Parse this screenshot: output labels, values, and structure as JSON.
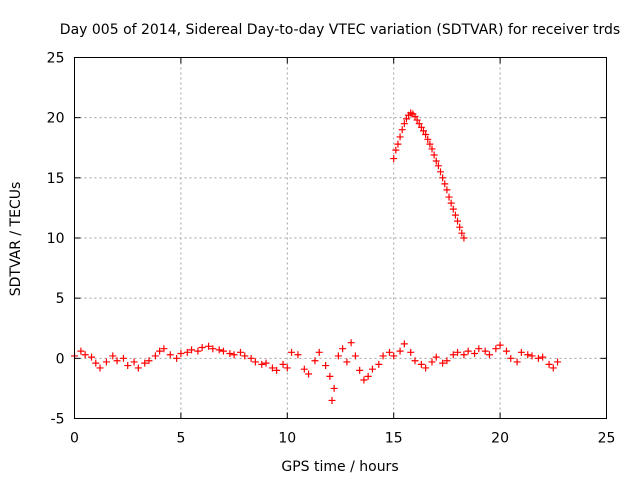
{
  "chart_data": {
    "type": "scatter",
    "title": "Day 005 of 2014, Sidereal Day-to-day VTEC variation (SDTVAR) for receiver trds",
    "xlabel": "GPS time / hours",
    "ylabel": "SDTVAR / TECUs",
    "xlim": [
      0,
      25
    ],
    "ylim": [
      -5,
      25
    ],
    "xticks": [
      0,
      5,
      10,
      15,
      20,
      25
    ],
    "yticks": [
      -5,
      0,
      5,
      10,
      15,
      20,
      25
    ],
    "grid": true,
    "marker": "+",
    "color": "#ff0000",
    "series": [
      {
        "name": "trds-low",
        "x": [
          0.0,
          0.3,
          0.5,
          0.8,
          1.0,
          1.2,
          1.5,
          1.8,
          2.0,
          2.3,
          2.5,
          2.8,
          3.0,
          3.3,
          3.5,
          3.8,
          4.0,
          4.2,
          4.5,
          4.8,
          5.0,
          5.3,
          5.5,
          5.8,
          6.0,
          6.3,
          6.5,
          6.8,
          7.0,
          7.3,
          7.5,
          7.8,
          8.0,
          8.3,
          8.5,
          8.8,
          9.0,
          9.3,
          9.5,
          9.8,
          10.0,
          10.2,
          10.5,
          10.8,
          11.0,
          11.3,
          11.5,
          11.8,
          12.0,
          12.1,
          12.2,
          12.4,
          12.6,
          12.8,
          13.0,
          13.2,
          13.4,
          13.6,
          13.8,
          14.0,
          14.3,
          14.5,
          14.8,
          15.0,
          15.3,
          15.5,
          15.8,
          16.0,
          16.3,
          16.5,
          16.8,
          17.0,
          17.3,
          17.5,
          17.8,
          18.0,
          18.3,
          18.5,
          18.8,
          19.0,
          19.3,
          19.5,
          19.8,
          20.0,
          20.3,
          20.5,
          20.8,
          21.0,
          21.3,
          21.5,
          21.8,
          22.0,
          22.3,
          22.5,
          22.7
        ],
        "y": [
          0.2,
          0.6,
          0.3,
          0.1,
          -0.4,
          -0.8,
          -0.3,
          0.2,
          -0.2,
          0.0,
          -0.6,
          -0.3,
          -0.8,
          -0.4,
          -0.2,
          0.2,
          0.6,
          0.8,
          0.3,
          0.0,
          0.4,
          0.5,
          0.7,
          0.6,
          0.9,
          1.0,
          0.8,
          0.7,
          0.6,
          0.4,
          0.3,
          0.5,
          0.2,
          0.0,
          -0.3,
          -0.5,
          -0.4,
          -0.8,
          -1.0,
          -0.5,
          -0.8,
          0.5,
          0.3,
          -0.9,
          -1.3,
          -0.2,
          0.5,
          -0.6,
          -1.5,
          -3.5,
          -2.5,
          0.2,
          0.8,
          -0.3,
          1.3,
          0.2,
          -1.0,
          -1.8,
          -1.5,
          -0.9,
          -0.5,
          0.2,
          0.5,
          0.2,
          0.6,
          1.2,
          0.5,
          -0.2,
          -0.5,
          -0.8,
          -0.3,
          0.1,
          -0.4,
          -0.2,
          0.3,
          0.5,
          0.3,
          0.6,
          0.4,
          0.8,
          0.6,
          0.3,
          0.8,
          1.1,
          0.6,
          0.0,
          -0.3,
          0.5,
          0.3,
          0.2,
          0.0,
          0.1,
          -0.5,
          -0.8,
          -0.3
        ]
      },
      {
        "name": "trds-peak",
        "x": [
          15.0,
          15.1,
          15.2,
          15.3,
          15.4,
          15.5,
          15.6,
          15.7,
          15.8,
          15.9,
          16.0,
          16.1,
          16.2,
          16.3,
          16.4,
          16.5,
          16.6,
          16.7,
          16.8,
          16.9,
          17.0,
          17.1,
          17.2,
          17.3,
          17.4,
          17.5,
          17.6,
          17.7,
          17.8,
          17.9,
          18.0,
          18.1,
          18.2,
          18.3
        ],
        "y": [
          16.6,
          17.3,
          17.8,
          18.4,
          19.0,
          19.5,
          19.9,
          20.2,
          20.4,
          20.3,
          20.1,
          19.8,
          19.5,
          19.2,
          18.9,
          18.6,
          18.2,
          17.8,
          17.4,
          16.9,
          16.4,
          16.0,
          15.5,
          15.0,
          14.5,
          14.0,
          13.4,
          12.9,
          12.4,
          11.9,
          11.4,
          10.9,
          10.4,
          10.0
        ]
      }
    ]
  }
}
